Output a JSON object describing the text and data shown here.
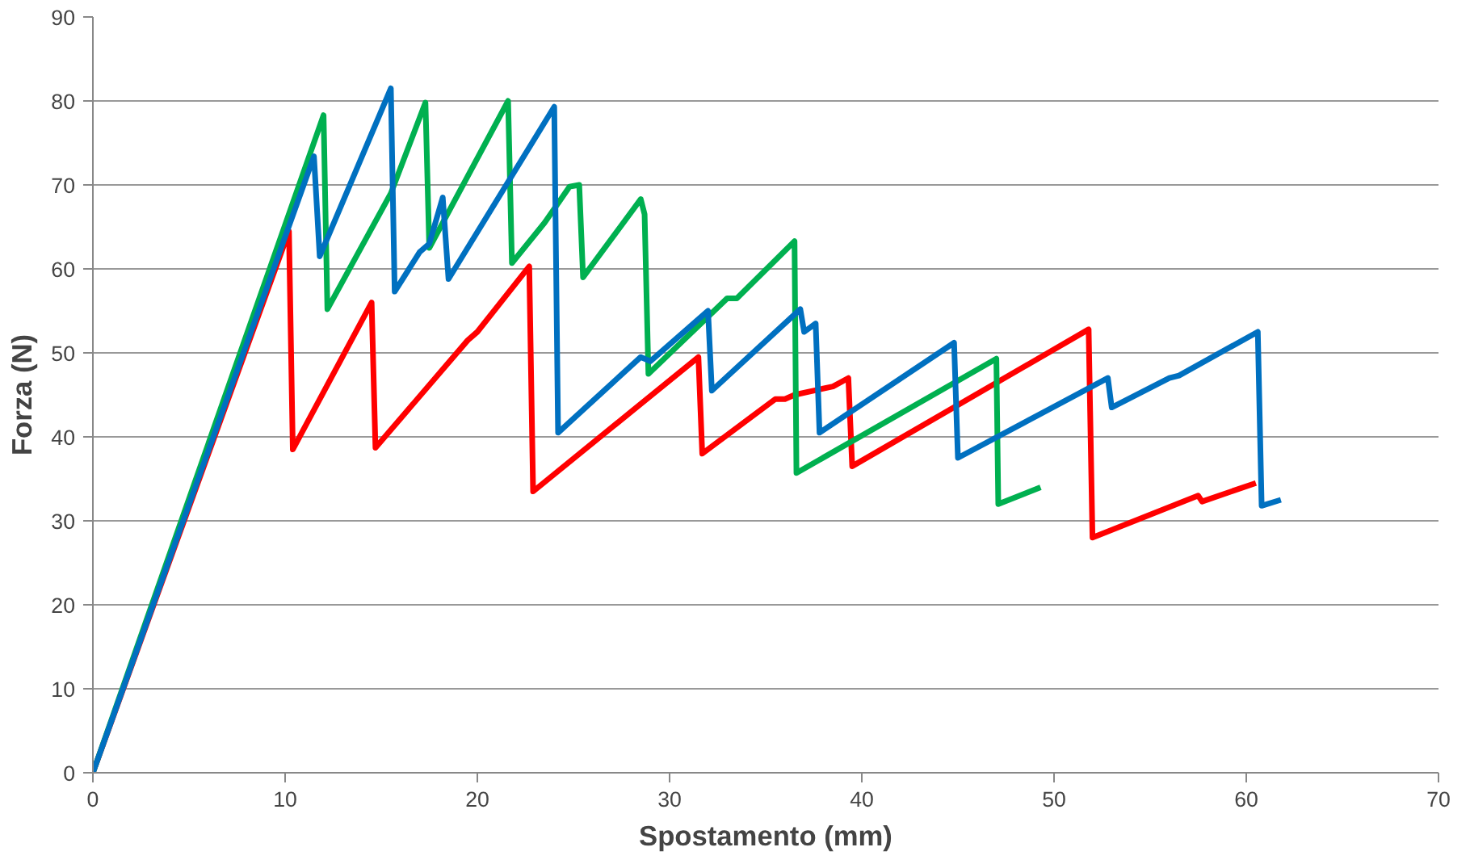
{
  "chart_data": {
    "type": "line",
    "xlabel": "Spostamento (mm)",
    "ylabel": "Forza (N)",
    "xlim": [
      0,
      70
    ],
    "ylim": [
      0,
      90
    ],
    "xticks": [
      0,
      10,
      20,
      30,
      40,
      50,
      60,
      70
    ],
    "yticks": [
      0,
      10,
      20,
      30,
      40,
      50,
      60,
      70,
      80,
      90
    ],
    "grid": "y",
    "marker": "none",
    "line_style": "solid",
    "series": [
      {
        "color": "#ff0000",
        "x": [
          0,
          10.2,
          10.4,
          14.5,
          14.7,
          19.5,
          20,
          22.7,
          22.9,
          31.5,
          31.7,
          35.5,
          36,
          36.5,
          38.5,
          39.3,
          39.5,
          51.8,
          52,
          57.5,
          57.7,
          60.5
        ],
        "values": [
          0,
          64.5,
          38.5,
          56,
          38.7,
          51.5,
          52.5,
          60.3,
          33.5,
          49.5,
          38,
          44.5,
          44.5,
          45,
          46,
          47,
          36.5,
          52.8,
          28,
          33,
          32.3,
          34.5
        ]
      },
      {
        "color": "#00b050",
        "x": [
          0,
          12,
          12.2,
          15.5,
          17.3,
          17.5,
          21.6,
          21.8,
          23.5,
          24.8,
          25.3,
          25.5,
          28.5,
          28.7,
          28.9,
          33,
          33.5,
          36.5,
          36.6,
          47,
          47.1,
          49.3
        ],
        "values": [
          0,
          78.3,
          55.2,
          69,
          79.8,
          62.5,
          80,
          60.7,
          65.5,
          69.8,
          70,
          59,
          68.3,
          66.5,
          47.5,
          56.5,
          56.5,
          63.3,
          35.7,
          49.3,
          32,
          34
        ]
      },
      {
        "color": "#0070c0",
        "x": [
          0,
          11.5,
          11.8,
          15.5,
          15.7,
          17,
          17.5,
          18.2,
          18.5,
          24,
          24.2,
          28.5,
          29,
          32,
          32.2,
          36.8,
          37,
          37.6,
          37.8,
          44.8,
          45,
          52.8,
          53,
          56,
          56.5,
          60.6,
          60.8,
          61.8
        ],
        "values": [
          0,
          73.4,
          61.5,
          81.5,
          57.3,
          62,
          63,
          68.5,
          58.8,
          79.3,
          40.5,
          49.5,
          49,
          55,
          45.5,
          55.2,
          52.5,
          53.5,
          40.5,
          51.2,
          37.5,
          47,
          43.5,
          47,
          47.3,
          52.5,
          31.8,
          32.5
        ]
      }
    ]
  }
}
